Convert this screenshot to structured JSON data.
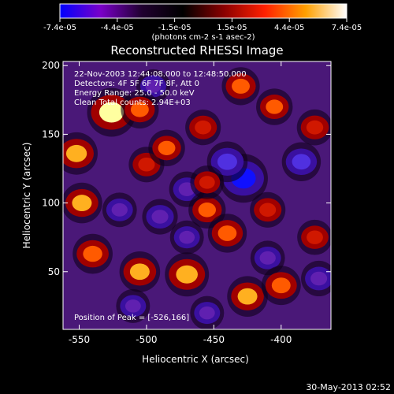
{
  "chart_data": {
    "type": "heatmap",
    "title": "Reconstructed RHESSI Image",
    "xlabel": "Heliocentric X (arcsec)",
    "ylabel": "Heliocentric Y (arcsec)",
    "xlim": [
      -562,
      -363
    ],
    "ylim": [
      8,
      203
    ],
    "x_ticks": [
      -550,
      -500,
      -450,
      -400
    ],
    "y_ticks": [
      50,
      100,
      150,
      200
    ],
    "colorbar": {
      "ticks": [
        "-7.4e-05",
        "-4.4e-05",
        "-1.5e-05",
        "1.5e-05",
        "4.4e-05",
        "7.4e-05"
      ],
      "unit_label": "(photons cm-2 s-1 asec-2)",
      "colors": [
        "#0000ff",
        "#7a00c8",
        "#200030",
        "#000000",
        "#8a0000",
        "#ff2000",
        "#ffa000",
        "#ffffff"
      ]
    },
    "annotations": [
      "22-Nov-2003 12:44:08.000 to 12:48:50.000",
      "Detectors: 4F 5F 6F 7F 8F, Att 0",
      "Energy Range: 25.0 - 50.0 keV",
      "Clean     Total counts: 2.94E+03"
    ],
    "peak_label": "Position of Peak = [-526,166]",
    "peak": [
      -526,
      166
    ],
    "hot_spots": [
      {
        "x": -526,
        "y": 166,
        "v": 7.4e-05
      },
      {
        "x": -552,
        "y": 136,
        "v": 5.5e-05
      },
      {
        "x": -548,
        "y": 100,
        "v": 5e-05
      },
      {
        "x": -540,
        "y": 63,
        "v": 4.8e-05
      },
      {
        "x": -505,
        "y": 168,
        "v": 4.2e-05
      },
      {
        "x": -500,
        "y": 128,
        "v": 3.5e-05
      },
      {
        "x": -485,
        "y": 140,
        "v": 3.8e-05
      },
      {
        "x": -505,
        "y": 50,
        "v": 5e-05
      },
      {
        "x": -470,
        "y": 48,
        "v": 6e-05
      },
      {
        "x": -455,
        "y": 95,
        "v": 4e-05
      },
      {
        "x": -440,
        "y": 78,
        "v": 4.5e-05
      },
      {
        "x": -425,
        "y": 32,
        "v": 5e-05
      },
      {
        "x": -400,
        "y": 40,
        "v": 4.6e-05
      },
      {
        "x": -430,
        "y": 185,
        "v": 4.2e-05
      },
      {
        "x": -405,
        "y": 170,
        "v": 3.8e-05
      },
      {
        "x": -375,
        "y": 155,
        "v": 3.6e-05
      },
      {
        "x": -410,
        "y": 95,
        "v": 3.5e-05
      },
      {
        "x": -375,
        "y": 75,
        "v": 3.4e-05
      },
      {
        "x": -458,
        "y": 155,
        "v": 3.5e-05
      },
      {
        "x": -455,
        "y": 115,
        "v": 3e-05
      }
    ],
    "cold_spots": [
      {
        "x": -428,
        "y": 118,
        "v": -7.4e-05
      },
      {
        "x": -440,
        "y": 130,
        "v": -5e-05
      },
      {
        "x": -385,
        "y": 130,
        "v": -4.5e-05
      },
      {
        "x": -470,
        "y": 110,
        "v": -3.5e-05
      },
      {
        "x": -490,
        "y": 90,
        "v": -3.5e-05
      },
      {
        "x": -510,
        "y": 25,
        "v": -3e-05
      },
      {
        "x": -455,
        "y": 20,
        "v": -3e-05
      },
      {
        "x": -372,
        "y": 45,
        "v": -3.5e-05
      },
      {
        "x": -520,
        "y": 95,
        "v": -3.2e-05
      },
      {
        "x": -495,
        "y": 185,
        "v": -3e-05
      },
      {
        "x": -410,
        "y": 60,
        "v": -3.2e-05
      },
      {
        "x": -470,
        "y": 75,
        "v": -3e-05
      }
    ]
  },
  "footer": {
    "date": "30-May-2013 02:52"
  }
}
